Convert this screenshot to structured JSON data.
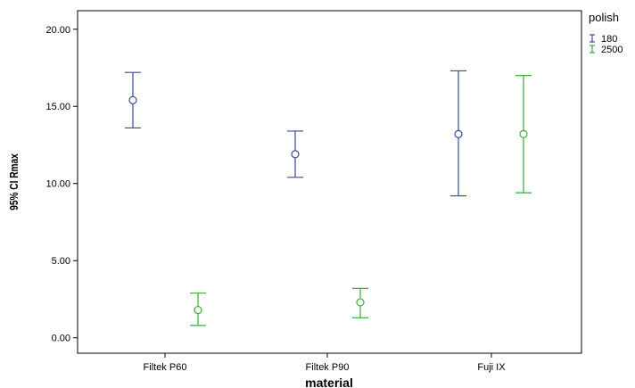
{
  "chart_data": {
    "type": "errorbar",
    "xlabel": "material",
    "ylabel": "95% CI Rmax",
    "categories": [
      "Filtek P60",
      "Filtek P90",
      "Fuji IX"
    ],
    "ylim": [
      -1.0,
      21.2
    ],
    "yticks": [
      0,
      5,
      10,
      15,
      20
    ],
    "ytick_labels": [
      "0.00",
      "5.00",
      "10.00",
      "15.00",
      "20.00"
    ],
    "grid": false,
    "legend": {
      "title": "polish",
      "placement": "top-right outside"
    },
    "series": [
      {
        "name": "180",
        "color": "#3a4a9a",
        "points": [
          {
            "category": "Filtek P60",
            "mean": 15.4,
            "lower": 13.6,
            "upper": 17.2
          },
          {
            "category": "Filtek P90",
            "mean": 11.9,
            "lower": 10.4,
            "upper": 13.4
          },
          {
            "category": "Fuji IX",
            "mean": 13.2,
            "lower": 9.2,
            "upper": 17.3
          }
        ]
      },
      {
        "name": "2500",
        "color": "#3aae3a",
        "points": [
          {
            "category": "Filtek P60",
            "mean": 1.8,
            "lower": 0.8,
            "upper": 2.9
          },
          {
            "category": "Filtek P90",
            "mean": 2.3,
            "lower": 1.3,
            "upper": 3.2
          },
          {
            "category": "Fuji IX",
            "mean": 13.2,
            "lower": 9.4,
            "upper": 17.0
          }
        ]
      }
    ]
  }
}
